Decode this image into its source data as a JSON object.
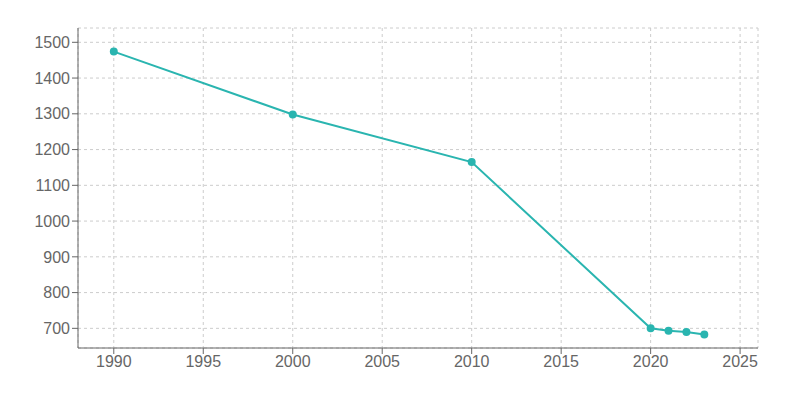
{
  "chart_data": {
    "type": "line",
    "x": [
      1990,
      2000,
      2010,
      2020,
      2021,
      2022,
      2023
    ],
    "values": [
      1474,
      1298,
      1165,
      700,
      693,
      690,
      683
    ],
    "color": "#2ab5b0",
    "marker": "circle",
    "xlim": [
      1988,
      2026
    ],
    "ylim": [
      645,
      1540
    ],
    "xticks": [
      1990,
      1995,
      2000,
      2005,
      2010,
      2015,
      2020,
      2025
    ],
    "yticks": [
      700,
      800,
      900,
      1000,
      1100,
      1200,
      1300,
      1400,
      1500
    ],
    "grid": true
  }
}
